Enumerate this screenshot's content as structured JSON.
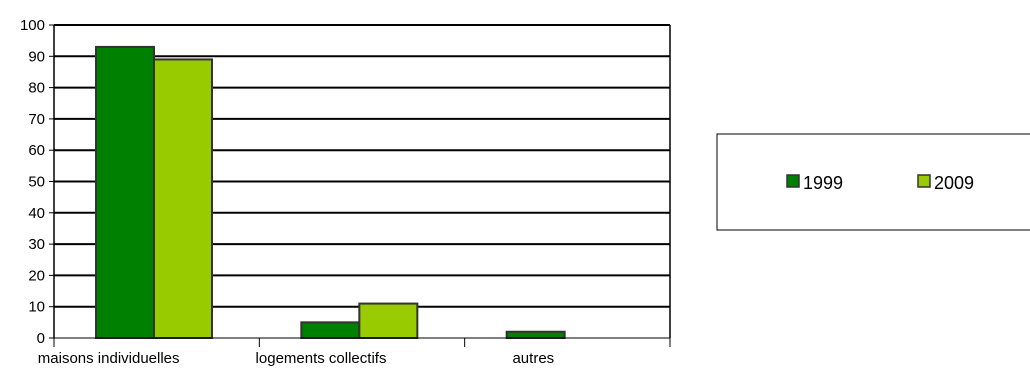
{
  "chart_data": {
    "type": "bar",
    "categories": [
      "maisons individuelles",
      "logements collectifs",
      "autres"
    ],
    "series": [
      {
        "name": "1999",
        "values": [
          93,
          5,
          2
        ],
        "color": "#008000"
      },
      {
        "name": "2009",
        "values": [
          89,
          11,
          0
        ],
        "color": "#99cc00"
      }
    ],
    "ylim": [
      0,
      100
    ],
    "yticks": [
      0,
      10,
      20,
      30,
      40,
      50,
      60,
      70,
      80,
      90,
      100
    ],
    "grid": true,
    "legend_position": "right"
  }
}
